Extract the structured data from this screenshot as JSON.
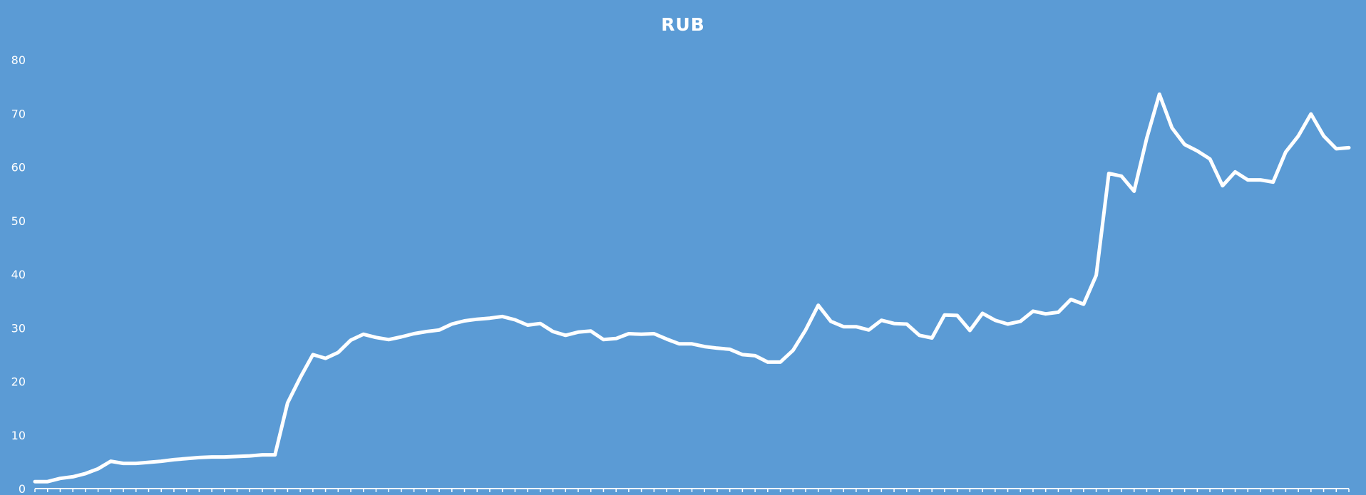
{
  "chart_data": {
    "type": "area",
    "title": "RUB",
    "xlabel": "",
    "ylabel": "",
    "ylim": [
      0,
      80
    ],
    "yticks": [
      0,
      10,
      20,
      30,
      40,
      50,
      60,
      70,
      80
    ],
    "grid": false,
    "legend": "none",
    "colors": {
      "background": "#5b9bd5",
      "line": "#ffffff",
      "drop_lines": "#ffffff"
    },
    "series": [
      {
        "values": [
          1.3,
          1.3,
          1.9,
          2.2,
          2.8,
          3.7,
          5.1,
          4.7,
          4.7,
          4.9,
          5.1,
          5.4,
          5.6,
          5.8,
          5.9,
          5.9,
          6.0,
          6.1,
          6.3,
          6.3,
          16.0,
          20.7,
          25.0,
          24.3,
          25.4,
          27.7,
          28.8,
          28.2,
          27.8,
          28.3,
          28.9,
          29.3,
          29.6,
          30.7,
          31.3,
          31.6,
          31.8,
          32.1,
          31.5,
          30.5,
          30.8,
          29.3,
          28.6,
          29.2,
          29.4,
          27.8,
          28.0,
          28.9,
          28.8,
          28.9,
          27.9,
          27.0,
          27.0,
          26.5,
          26.2,
          26.0,
          25.0,
          24.8,
          23.6,
          23.6,
          25.8,
          29.6,
          34.2,
          31.2,
          30.2,
          30.2,
          29.6,
          31.4,
          30.8,
          30.7,
          28.6,
          28.1,
          32.4,
          32.3,
          29.5,
          32.7,
          31.4,
          30.7,
          31.2,
          33.1,
          32.6,
          32.9,
          35.3,
          34.4,
          39.8,
          58.8,
          58.3,
          55.5,
          65.4,
          73.6,
          67.3,
          64.2,
          63.0,
          61.5,
          56.5,
          59.1,
          57.6,
          57.6,
          57.2,
          62.8,
          65.8,
          69.9,
          65.8,
          63.4,
          63.6
        ]
      }
    ]
  }
}
